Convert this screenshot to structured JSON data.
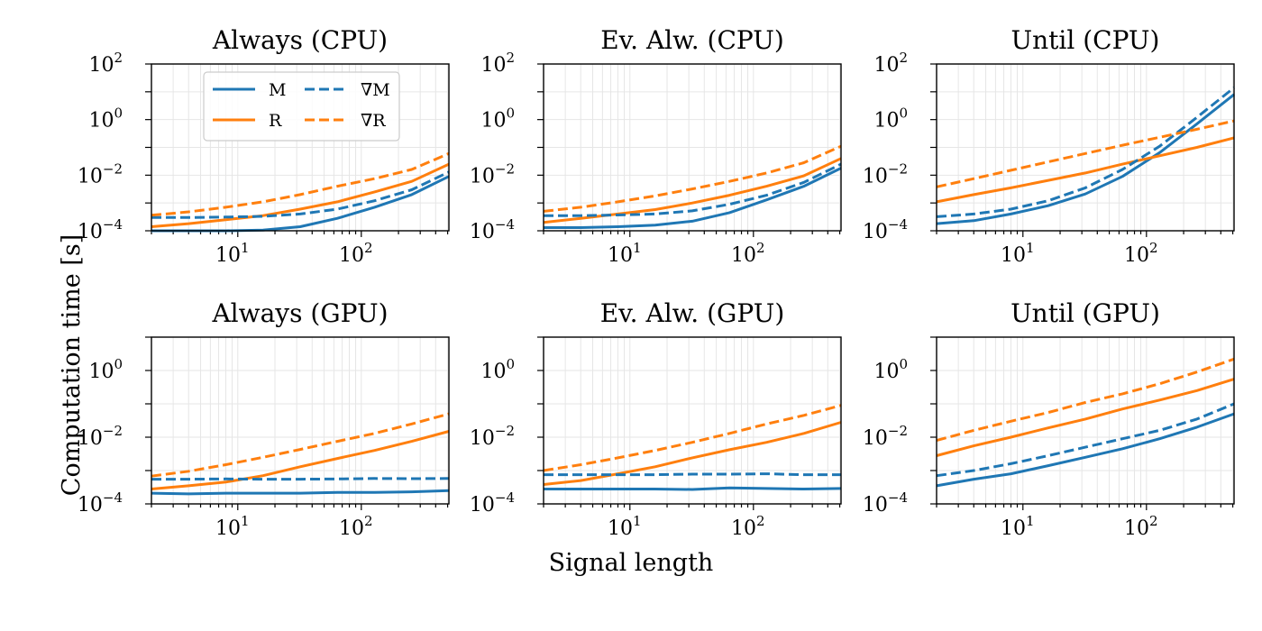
{
  "figure": {
    "ylabel": "Computation time [s]",
    "xlabel": "Signal length"
  },
  "legend": {
    "placement": "upper-left of first panel",
    "entries": [
      {
        "label": "M",
        "color": "#1f77b4",
        "dash": false
      },
      {
        "label": "R",
        "color": "#ff7f0e",
        "dash": false
      },
      {
        "label": "∇M",
        "color": "#1f77b4",
        "dash": true
      },
      {
        "label": "∇R",
        "color": "#ff7f0e",
        "dash": true
      }
    ]
  },
  "colors": {
    "M": "#1f77b4",
    "R": "#ff7f0e",
    "axis": "#000000",
    "grid": "#e6e6e6"
  },
  "chart_data": [
    {
      "type": "line",
      "title": "Always (CPU)",
      "xscale": "log",
      "yscale": "log",
      "xlim": [
        2,
        512
      ],
      "ylim": [
        0.0001,
        100
      ],
      "grid": true,
      "xticks": [
        {
          "v": 10,
          "base": "10",
          "exp": "1"
        },
        {
          "v": 100,
          "base": "10",
          "exp": "2"
        }
      ],
      "yticks": [
        {
          "v": 0.0001,
          "base": "10",
          "exp": "−4"
        },
        {
          "v": 0.01,
          "base": "10",
          "exp": "−2"
        },
        {
          "v": 1,
          "base": "10",
          "exp": "0"
        },
        {
          "v": 100,
          "base": "10",
          "exp": "2"
        }
      ],
      "x": [
        2,
        4,
        8,
        16,
        32,
        64,
        128,
        256,
        512
      ],
      "series": [
        {
          "name": "M",
          "color": "#1f77b4",
          "dash": false,
          "values": [
            0.0001,
            0.0001,
            0.0001,
            0.000105,
            0.00014,
            0.00028,
            0.0007,
            0.002,
            0.009
          ]
        },
        {
          "name": "R",
          "color": "#ff7f0e",
          "dash": false,
          "values": [
            0.00014,
            0.00018,
            0.00025,
            0.00035,
            0.0006,
            0.0011,
            0.0025,
            0.006,
            0.025
          ]
        },
        {
          "name": "∇M",
          "color": "#1f77b4",
          "dash": true,
          "values": [
            0.0003,
            0.0003,
            0.00031,
            0.00033,
            0.0004,
            0.0006,
            0.0012,
            0.003,
            0.013
          ]
        },
        {
          "name": "∇R",
          "color": "#ff7f0e",
          "dash": true,
          "values": [
            0.00036,
            0.00048,
            0.0007,
            0.0011,
            0.002,
            0.004,
            0.0075,
            0.016,
            0.06
          ]
        }
      ]
    },
    {
      "type": "line",
      "title": "Ev. Alw. (CPU)",
      "xscale": "log",
      "yscale": "log",
      "xlim": [
        2,
        512
      ],
      "ylim": [
        0.0001,
        100
      ],
      "grid": true,
      "xticks": [
        {
          "v": 10,
          "base": "10",
          "exp": "1"
        },
        {
          "v": 100,
          "base": "10",
          "exp": "2"
        }
      ],
      "yticks": [
        {
          "v": 0.0001,
          "base": "10",
          "exp": "−4"
        },
        {
          "v": 0.01,
          "base": "10",
          "exp": "−2"
        },
        {
          "v": 1,
          "base": "10",
          "exp": "0"
        },
        {
          "v": 100,
          "base": "10",
          "exp": "2"
        }
      ],
      "x": [
        2,
        4,
        8,
        16,
        32,
        64,
        128,
        256,
        512
      ],
      "series": [
        {
          "name": "M",
          "color": "#1f77b4",
          "dash": false,
          "values": [
            0.00013,
            0.00013,
            0.00014,
            0.00016,
            0.00022,
            0.00045,
            0.0013,
            0.004,
            0.018
          ]
        },
        {
          "name": "R",
          "color": "#ff7f0e",
          "dash": false,
          "values": [
            0.0002,
            0.00028,
            0.0004,
            0.00058,
            0.001,
            0.0019,
            0.004,
            0.0095,
            0.04
          ]
        },
        {
          "name": "∇M",
          "color": "#1f77b4",
          "dash": true,
          "values": [
            0.00035,
            0.00035,
            0.00037,
            0.0004,
            0.00052,
            0.0009,
            0.0019,
            0.0055,
            0.025
          ]
        },
        {
          "name": "∇R",
          "color": "#ff7f0e",
          "dash": true,
          "values": [
            0.0005,
            0.0007,
            0.0011,
            0.0018,
            0.0032,
            0.006,
            0.012,
            0.028,
            0.11
          ]
        }
      ]
    },
    {
      "type": "line",
      "title": "Until (CPU)",
      "xscale": "log",
      "yscale": "log",
      "xlim": [
        2,
        512
      ],
      "ylim": [
        0.0001,
        100
      ],
      "grid": true,
      "xticks": [
        {
          "v": 10,
          "base": "10",
          "exp": "1"
        },
        {
          "v": 100,
          "base": "10",
          "exp": "2"
        }
      ],
      "yticks": [
        {
          "v": 0.0001,
          "base": "10",
          "exp": "−4"
        },
        {
          "v": 0.01,
          "base": "10",
          "exp": "−2"
        },
        {
          "v": 1,
          "base": "10",
          "exp": "0"
        },
        {
          "v": 100,
          "base": "10",
          "exp": "2"
        }
      ],
      "x": [
        2,
        4,
        8,
        16,
        32,
        64,
        128,
        256,
        512
      ],
      "series": [
        {
          "name": "M",
          "color": "#1f77b4",
          "dash": false,
          "values": [
            0.00018,
            0.00023,
            0.0004,
            0.0008,
            0.0021,
            0.009,
            0.065,
            0.7,
            8
          ]
        },
        {
          "name": "R",
          "color": "#ff7f0e",
          "dash": false,
          "values": [
            0.0011,
            0.002,
            0.0035,
            0.0065,
            0.012,
            0.025,
            0.05,
            0.1,
            0.22
          ]
        },
        {
          "name": "∇M",
          "color": "#1f77b4",
          "dash": true,
          "values": [
            0.00032,
            0.0004,
            0.0006,
            0.0012,
            0.0035,
            0.016,
            0.11,
            1.2,
            14
          ]
        },
        {
          "name": "∇R",
          "color": "#ff7f0e",
          "dash": true,
          "values": [
            0.0038,
            0.0075,
            0.015,
            0.03,
            0.06,
            0.12,
            0.23,
            0.45,
            0.9
          ]
        }
      ]
    },
    {
      "type": "line",
      "title": "Always (GPU)",
      "xscale": "log",
      "yscale": "log",
      "xlim": [
        2,
        512
      ],
      "ylim": [
        0.0001,
        10
      ],
      "grid": true,
      "xticks": [
        {
          "v": 10,
          "base": "10",
          "exp": "1"
        },
        {
          "v": 100,
          "base": "10",
          "exp": "2"
        }
      ],
      "yticks": [
        {
          "v": 0.0001,
          "base": "10",
          "exp": "−4"
        },
        {
          "v": 0.01,
          "base": "10",
          "exp": "−2"
        },
        {
          "v": 1,
          "base": "10",
          "exp": "0"
        }
      ],
      "x": [
        2,
        4,
        8,
        16,
        32,
        64,
        128,
        256,
        512
      ],
      "series": [
        {
          "name": "M",
          "color": "#1f77b4",
          "dash": false,
          "values": [
            0.00021,
            0.0002,
            0.00021,
            0.00021,
            0.00021,
            0.00022,
            0.00022,
            0.00023,
            0.00025
          ]
        },
        {
          "name": "R",
          "color": "#ff7f0e",
          "dash": false,
          "values": [
            0.00028,
            0.00035,
            0.00045,
            0.0007,
            0.0013,
            0.0023,
            0.004,
            0.0075,
            0.015
          ]
        },
        {
          "name": "∇M",
          "color": "#1f77b4",
          "dash": true,
          "values": [
            0.00055,
            0.00055,
            0.00056,
            0.00055,
            0.00055,
            0.00056,
            0.00058,
            0.00057,
            0.00058
          ]
        },
        {
          "name": "∇R",
          "color": "#ff7f0e",
          "dash": true,
          "values": [
            0.00068,
            0.00095,
            0.0015,
            0.0025,
            0.0043,
            0.0075,
            0.013,
            0.025,
            0.05
          ]
        }
      ]
    },
    {
      "type": "line",
      "title": "Ev. Alw. (GPU)",
      "xscale": "log",
      "yscale": "log",
      "xlim": [
        2,
        512
      ],
      "ylim": [
        0.0001,
        10
      ],
      "grid": true,
      "xticks": [
        {
          "v": 10,
          "base": "10",
          "exp": "1"
        },
        {
          "v": 100,
          "base": "10",
          "exp": "2"
        }
      ],
      "yticks": [
        {
          "v": 0.0001,
          "base": "10",
          "exp": "−4"
        },
        {
          "v": 0.01,
          "base": "10",
          "exp": "−2"
        },
        {
          "v": 1,
          "base": "10",
          "exp": "0"
        }
      ],
      "x": [
        2,
        4,
        8,
        16,
        32,
        64,
        128,
        256,
        512
      ],
      "series": [
        {
          "name": "M",
          "color": "#1f77b4",
          "dash": false,
          "values": [
            0.00028,
            0.00028,
            0.00028,
            0.00028,
            0.00027,
            0.0003,
            0.00029,
            0.00028,
            0.00029
          ]
        },
        {
          "name": "R",
          "color": "#ff7f0e",
          "dash": false,
          "values": [
            0.00038,
            0.0005,
            0.0008,
            0.0013,
            0.0024,
            0.0042,
            0.007,
            0.013,
            0.028
          ]
        },
        {
          "name": "∇M",
          "color": "#1f77b4",
          "dash": true,
          "values": [
            0.00075,
            0.00075,
            0.00075,
            0.00075,
            0.00078,
            0.00078,
            0.0008,
            0.00075,
            0.00075
          ]
        },
        {
          "name": "∇R",
          "color": "#ff7f0e",
          "dash": true,
          "values": [
            0.001,
            0.0015,
            0.0024,
            0.004,
            0.007,
            0.013,
            0.025,
            0.045,
            0.09
          ]
        }
      ]
    },
    {
      "type": "line",
      "title": "Until (GPU)",
      "xscale": "log",
      "yscale": "log",
      "xlim": [
        2,
        512
      ],
      "ylim": [
        0.0001,
        10
      ],
      "grid": true,
      "xticks": [
        {
          "v": 10,
          "base": "10",
          "exp": "1"
        },
        {
          "v": 100,
          "base": "10",
          "exp": "2"
        }
      ],
      "yticks": [
        {
          "v": 0.0001,
          "base": "10",
          "exp": "−4"
        },
        {
          "v": 0.01,
          "base": "10",
          "exp": "−2"
        },
        {
          "v": 1,
          "base": "10",
          "exp": "0"
        }
      ],
      "x": [
        2,
        4,
        8,
        16,
        32,
        64,
        128,
        256,
        512
      ],
      "series": [
        {
          "name": "M",
          "color": "#1f77b4",
          "dash": false,
          "values": [
            0.00035,
            0.00055,
            0.0008,
            0.0014,
            0.0025,
            0.0045,
            0.009,
            0.02,
            0.05
          ]
        },
        {
          "name": "R",
          "color": "#ff7f0e",
          "dash": false,
          "values": [
            0.0028,
            0.0055,
            0.01,
            0.019,
            0.035,
            0.07,
            0.13,
            0.25,
            0.55
          ]
        },
        {
          "name": "∇M",
          "color": "#1f77b4",
          "dash": true,
          "values": [
            0.0007,
            0.001,
            0.0016,
            0.0028,
            0.005,
            0.009,
            0.016,
            0.035,
            0.1
          ]
        },
        {
          "name": "∇R",
          "color": "#ff7f0e",
          "dash": true,
          "values": [
            0.008,
            0.016,
            0.03,
            0.055,
            0.11,
            0.2,
            0.4,
            0.9,
            2.2
          ]
        }
      ]
    }
  ]
}
